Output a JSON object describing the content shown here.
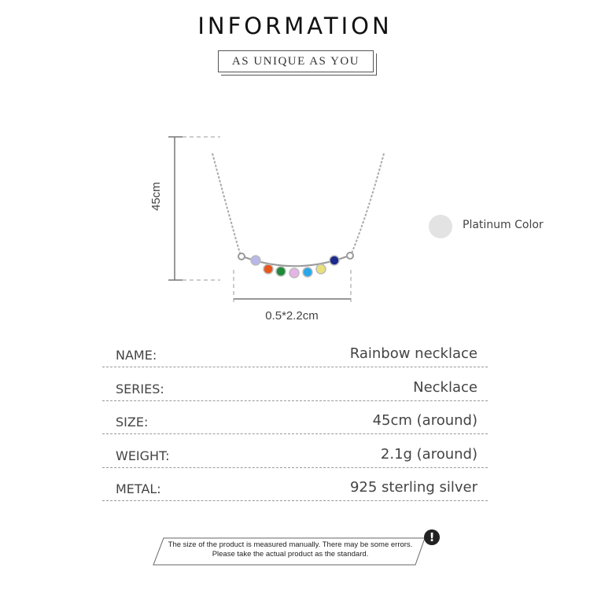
{
  "header": {
    "title": "INFORMATION",
    "subtitle": "AS UNIQUE AS YOU"
  },
  "product_image": {
    "height_label": "45cm",
    "width_label": "0.5*2.2cm",
    "stone_colors": [
      "#b9b6e8",
      "#e8561a",
      "#1f8a3a",
      "#e6b3e6",
      "#2aa7e8",
      "#e8e07a",
      "#1c2a8c"
    ]
  },
  "color_option": {
    "label": "Platinum Color",
    "swatch": "#e3e3e3"
  },
  "specs": [
    {
      "key": "NAME:",
      "value": "Rainbow necklace"
    },
    {
      "key": "SERIES:",
      "value": "Necklace"
    },
    {
      "key": "SIZE:",
      "value": "45cm (around)"
    },
    {
      "key": "WEIGHT:",
      "value": "2.1g (around)"
    },
    {
      "key": "METAL:",
      "value": "925 sterling silver"
    }
  ],
  "note": {
    "line1": "The size of the product is measured manually. There may be some errors.",
    "line2": "Please take the actual product as the standard.",
    "icon": "exclamation-icon"
  }
}
